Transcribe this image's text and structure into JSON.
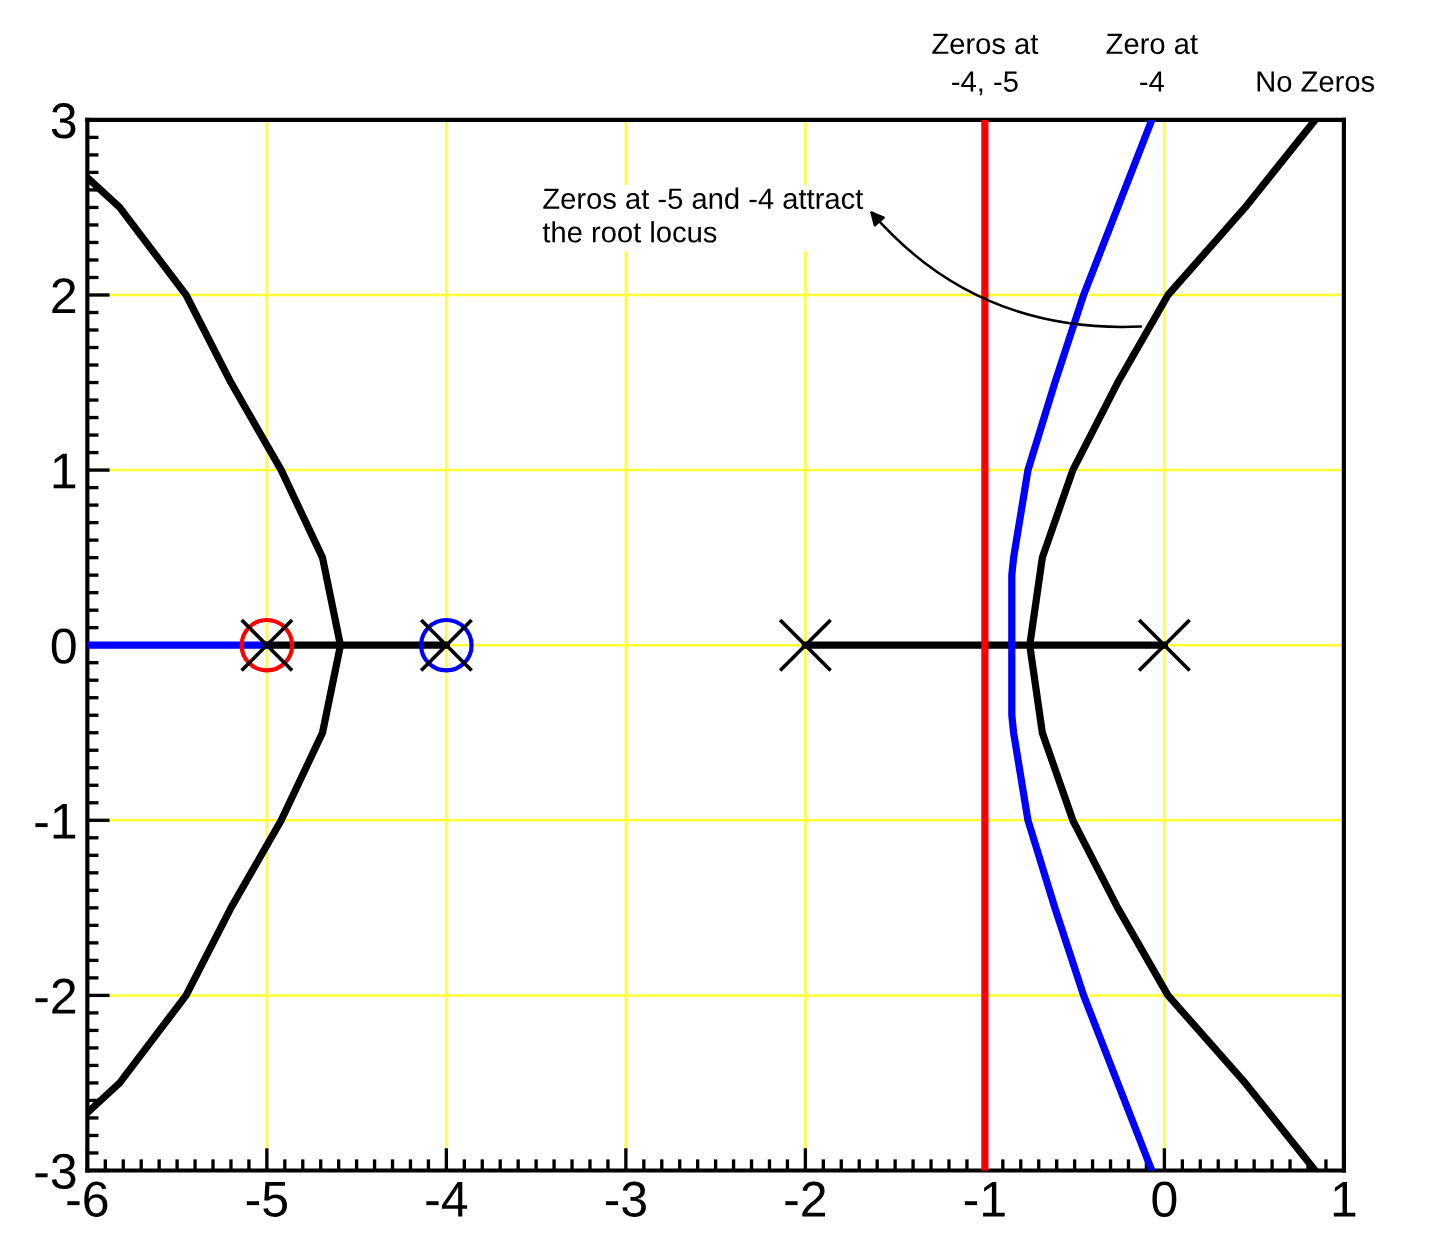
{
  "chart_data": {
    "type": "line",
    "xlim": [
      -6,
      1
    ],
    "ylim": [
      -3,
      3
    ],
    "xticks": [
      -6,
      -5,
      -4,
      -3,
      -2,
      -1,
      0,
      1
    ],
    "yticks": [
      -3,
      -2,
      -1,
      0,
      1,
      2,
      3
    ],
    "grid": true,
    "line_style": "solid",
    "marker": "none",
    "annotations": [
      {
        "text": "Zeros at -5 and -4 attract\nthe root locus",
        "x": -0.13,
        "y": 1.82
      }
    ],
    "series": [
      {
        "name": "No Zeros",
        "color": "#000000",
        "x": [
          0.84,
          0.45,
          0.02,
          -0.26,
          -0.51,
          -0.68,
          -0.75,
          -0.68,
          -0.51,
          -0.26,
          0.02,
          0.45,
          0.84,
          null,
          -6,
          -5.82,
          -5.45,
          -5.2,
          -4.92,
          -4.69,
          -4.59,
          -4.69,
          -4.92,
          -5.2,
          -5.45,
          -5.82,
          -6,
          null,
          -2,
          0,
          null,
          -5,
          -4
        ],
        "values": [
          3,
          2.5,
          2,
          1.5,
          1,
          0.5,
          0,
          -0.5,
          -1,
          -1.5,
          -2,
          -2.5,
          -3,
          null,
          2.67,
          2.5,
          2,
          1.5,
          1,
          0.5,
          0,
          -0.5,
          -1,
          -1.5,
          -2,
          -2.5,
          -2.67,
          null,
          0,
          0,
          null,
          0,
          0
        ]
      },
      {
        "name": "Zero at\n-4",
        "color": "#0000ff",
        "x": [
          -0.07,
          -0.26,
          -0.45,
          -0.61,
          -0.76,
          -0.84,
          -0.85,
          -0.85,
          -0.84,
          -0.76,
          -0.61,
          -0.45,
          -0.26,
          -0.07,
          null,
          -6,
          -5
        ],
        "values": [
          3,
          2.5,
          2,
          1.5,
          1,
          0.5,
          0.4,
          -0.4,
          -0.5,
          -1,
          -1.5,
          -2,
          -2.5,
          -3,
          null,
          0,
          0
        ]
      },
      {
        "name": "Zeros at\n-4, -5",
        "color": "#ff0000",
        "x": [
          -1,
          -1
        ],
        "values": [
          3,
          -3
        ]
      },
      {
        "type": "scatter",
        "marker": "cross",
        "color": "#000000",
        "x": [
          -5,
          -4,
          -2,
          0
        ],
        "values": [
          0,
          0,
          0,
          0
        ]
      },
      {
        "type": "scatter",
        "marker": "circle",
        "color": "#ff0000",
        "x": [
          -5
        ],
        "values": [
          0
        ]
      },
      {
        "type": "scatter",
        "marker": "circle",
        "color": "#0000ff",
        "x": [
          -4
        ],
        "values": [
          0
        ]
      }
    ]
  }
}
